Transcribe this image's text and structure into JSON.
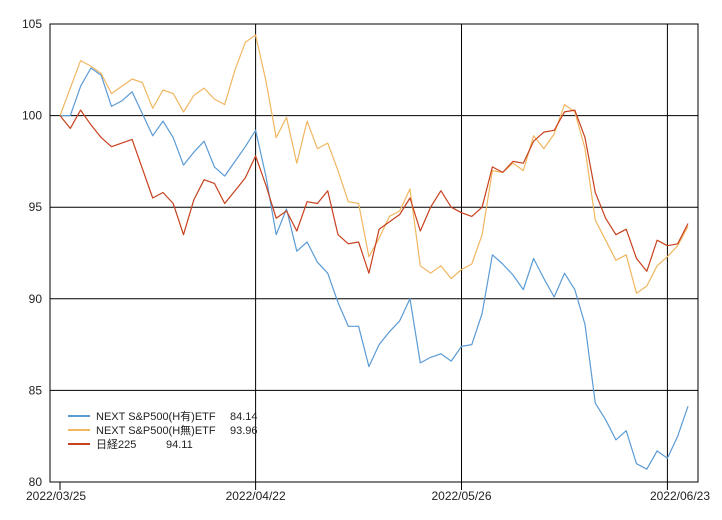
{
  "chart_data": {
    "type": "line",
    "xlabel": "",
    "ylabel": "",
    "ylim": [
      80,
      105
    ],
    "yticks": [
      80,
      85,
      90,
      95,
      100,
      105
    ],
    "x_tick_labels": [
      {
        "label": "2022/03/25",
        "index": 0
      },
      {
        "label": "2022/04/22",
        "index": 19
      },
      {
        "label": "2022/05/26",
        "index": 39
      },
      {
        "label": "2022/06/23",
        "index": 59
      }
    ],
    "grid": true,
    "legend_position": "bottom-left",
    "series": [
      {
        "name": "NEXT S&P500(H有)ETF",
        "last": "84.14",
        "color": "#5b9bd5",
        "values": [
          100.0,
          100.0,
          101.6,
          102.6,
          102.2,
          100.5,
          100.8,
          101.3,
          100.1,
          98.9,
          99.7,
          98.8,
          97.3,
          98.0,
          98.6,
          97.2,
          96.7,
          97.5,
          98.3,
          99.2,
          96.7,
          93.5,
          94.9,
          92.6,
          93.1,
          92.0,
          91.4,
          89.8,
          88.5,
          88.5,
          86.3,
          87.5,
          88.2,
          88.8,
          90.0,
          86.5,
          86.8,
          87.0,
          86.6,
          87.4,
          87.5,
          89.2,
          92.4,
          91.9,
          91.3,
          90.5,
          92.2,
          91.1,
          90.1,
          91.4,
          90.5,
          88.6,
          84.3,
          83.4,
          82.3,
          82.8,
          81.0,
          80.7,
          81.7,
          81.3,
          82.5,
          84.14
        ]
      },
      {
        "name": "NEXT S&P500(H無)ETF",
        "last": "93.96",
        "color": "#f0b660",
        "values": [
          100.0,
          101.5,
          103.0,
          102.7,
          102.3,
          101.2,
          101.6,
          102.0,
          101.8,
          100.4,
          101.4,
          101.2,
          100.2,
          101.1,
          101.5,
          100.9,
          100.6,
          102.5,
          104.0,
          104.4,
          101.9,
          98.8,
          99.9,
          97.4,
          99.7,
          98.2,
          98.5,
          97.0,
          95.3,
          95.2,
          92.3,
          93.3,
          94.5,
          94.8,
          96.0,
          91.8,
          91.4,
          91.8,
          91.1,
          91.6,
          91.9,
          93.5,
          97.0,
          96.9,
          97.4,
          97.0,
          98.9,
          98.2,
          99.0,
          100.6,
          100.2,
          98.2,
          94.3,
          93.2,
          92.1,
          92.4,
          90.3,
          90.7,
          91.8,
          92.3,
          92.9,
          93.96
        ]
      },
      {
        "name": "日経225",
        "last": "94.11",
        "color": "#c8401e",
        "values": [
          100.0,
          99.3,
          100.3,
          99.5,
          98.8,
          98.3,
          98.5,
          98.7,
          97.1,
          95.5,
          95.8,
          95.2,
          93.5,
          95.4,
          96.5,
          96.3,
          95.2,
          95.9,
          96.6,
          97.8,
          96.2,
          94.4,
          94.8,
          93.7,
          95.3,
          95.2,
          95.9,
          93.5,
          93.0,
          93.1,
          91.4,
          93.8,
          94.2,
          94.6,
          95.5,
          93.7,
          95.0,
          95.9,
          95.0,
          94.7,
          94.5,
          95.0,
          97.2,
          96.9,
          97.5,
          97.4,
          98.6,
          99.1,
          99.2,
          100.2,
          100.3,
          98.8,
          95.8,
          94.4,
          93.5,
          93.8,
          92.2,
          91.5,
          93.2,
          92.9,
          93.0,
          94.11
        ]
      }
    ]
  }
}
